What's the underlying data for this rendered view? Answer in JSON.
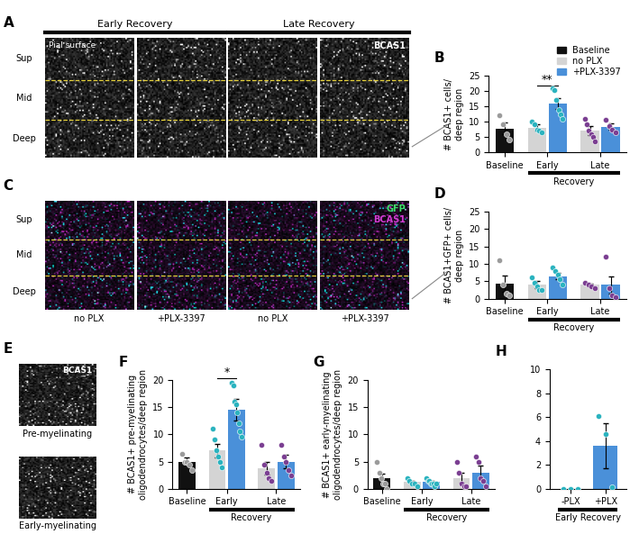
{
  "chart_data": [
    {
      "panel": "B",
      "type": "bar",
      "categories": [
        "Baseline",
        "Early",
        "Late"
      ],
      "bracket": {
        "label": "Recovery",
        "categories": [
          "Early",
          "Late"
        ]
      },
      "ylabel": "# BCAS1+ cells/\ndeep region",
      "ylim": [
        0,
        25
      ],
      "yticks": [
        0,
        5,
        10,
        15,
        20,
        25
      ],
      "legend": "upper right",
      "annotations": [
        {
          "text": "**",
          "category": "Early"
        }
      ],
      "series": [
        {
          "name": "Baseline",
          "color": "#111111",
          "values": [
            7.8,
            null,
            null
          ],
          "errors": [
            2.0,
            null,
            null
          ],
          "points": [
            [
              12,
              9,
              6,
              4
            ],
            [],
            []
          ]
        },
        {
          "name": "no PLX",
          "color": "#d4d4d4",
          "values": [
            null,
            8.0,
            7.0
          ],
          "errors": [
            null,
            1.0,
            1.5
          ],
          "points": [
            [],
            [
              10,
              9,
              7.5,
              7,
              6.5
            ],
            [
              11,
              9,
              7,
              6,
              5,
              3.5
            ]
          ]
        },
        {
          "name": "+PLX-3397",
          "color": "#4a90d9",
          "values": [
            null,
            16.0,
            8.3
          ],
          "errors": [
            null,
            1.8,
            1.0
          ],
          "points": [
            [],
            [
              21,
              20.5,
              17,
              14,
              12.5,
              11
            ],
            [
              10.5,
              8.5,
              7.5,
              6.5
            ]
          ]
        }
      ]
    },
    {
      "panel": "D",
      "type": "bar",
      "categories": [
        "Baseline",
        "Early",
        "Late"
      ],
      "bracket": {
        "label": "Recovery",
        "categories": [
          "Early",
          "Late"
        ]
      },
      "ylabel": "# BCAS1+GFP+ cells/\ndeep region",
      "ylim": [
        0,
        25
      ],
      "yticks": [
        0,
        5,
        10,
        15,
        20,
        25
      ],
      "series": [
        {
          "name": "Baseline",
          "color": "#111111",
          "values": [
            4.3,
            null,
            null
          ],
          "errors": [
            2.3,
            null,
            null
          ],
          "points": [
            [
              11,
              4,
              1.5,
              1
            ],
            [],
            []
          ]
        },
        {
          "name": "no PLX",
          "color": "#d4d4d4",
          "values": [
            null,
            4.0,
            4.0
          ],
          "errors": [
            null,
            1.0,
            0.4
          ],
          "points": [
            [],
            [
              6,
              4.5,
              3.5,
              2.5,
              2.5
            ],
            [
              4.5,
              4,
              3.5,
              3
            ]
          ]
        },
        {
          "name": "+PLX-3397",
          "color": "#4a90d9",
          "values": [
            null,
            6.5,
            4.0
          ],
          "errors": [
            null,
            1.0,
            2.5
          ],
          "points": [
            [],
            [
              9,
              8,
              7,
              5.5,
              4
            ],
            [
              12,
              3,
              1,
              0.5
            ]
          ]
        }
      ]
    },
    {
      "panel": "F",
      "type": "bar",
      "categories": [
        "Baseline",
        "Early",
        "Late"
      ],
      "bracket": {
        "label": "Recovery",
        "categories": [
          "Early",
          "Late"
        ]
      },
      "ylabel": "# BCAS1+ pre-myelinating\noligodendrocytes/deep region",
      "ylim": [
        0,
        20
      ],
      "yticks": [
        0,
        5,
        10,
        15,
        20
      ],
      "annotations": [
        {
          "text": "*",
          "category": "Early"
        }
      ],
      "series": [
        {
          "name": "Baseline",
          "color": "#111111",
          "values": [
            5.0,
            null,
            null
          ],
          "errors": [
            0.7,
            null,
            null
          ],
          "points": [
            [
              6.5,
              5,
              5,
              4.5,
              3.5
            ],
            [],
            []
          ]
        },
        {
          "name": "no PLX",
          "color": "#d4d4d4",
          "values": [
            null,
            7.0,
            3.8
          ],
          "errors": [
            null,
            1.3,
            1.2
          ],
          "points": [
            [],
            [
              11,
              9,
              7,
              6,
              5,
              4
            ],
            [
              8,
              4.5,
              3,
              2,
              1.5
            ]
          ]
        },
        {
          "name": "+PLX-3397",
          "color": "#4a90d9",
          "values": [
            null,
            14.5,
            5.0
          ],
          "errors": [
            null,
            2.0,
            1.3
          ],
          "points": [
            [],
            [
              19.5,
              19,
              16,
              15.5,
              14,
              12,
              10.5,
              9.5
            ],
            [
              8,
              6,
              5,
              3.5,
              2.5
            ]
          ]
        }
      ]
    },
    {
      "panel": "G",
      "type": "bar",
      "categories": [
        "Baseline",
        "Early",
        "Late"
      ],
      "bracket": {
        "label": "Recovery",
        "categories": [
          "Early",
          "Late"
        ]
      },
      "ylabel": "# BCAS1+ early-myelinating\noligodendrocytes/deep region",
      "ylim": [
        0,
        20
      ],
      "yticks": [
        0,
        5,
        10,
        15,
        20
      ],
      "series": [
        {
          "name": "Baseline",
          "color": "#111111",
          "values": [
            2.0,
            null,
            null
          ],
          "errors": [
            0.8,
            null,
            null
          ],
          "points": [
            [
              5,
              3,
              2,
              1,
              1,
              0
            ],
            [],
            []
          ]
        },
        {
          "name": "no PLX",
          "color": "#d4d4d4",
          "values": [
            null,
            1.2,
            2.0
          ],
          "errors": [
            null,
            0.3,
            0.9
          ],
          "points": [
            [],
            [
              2,
              1.5,
              1,
              1,
              0.5
            ],
            [
              5,
              3,
              1,
              0.5,
              0.5
            ]
          ]
        },
        {
          "name": "+PLX-3397",
          "color": "#4a90d9",
          "values": [
            null,
            1.2,
            3.0
          ],
          "errors": [
            null,
            0.2,
            1.2
          ],
          "points": [
            [],
            [
              2,
              1.5,
              1.5,
              1,
              1,
              1,
              0.5,
              1
            ],
            [
              6,
              5,
              2,
              1.5,
              0.5
            ]
          ]
        }
      ]
    },
    {
      "panel": "H",
      "type": "bar",
      "categories": [
        "-PLX",
        "+PLX"
      ],
      "bracket": {
        "label": "Early Recovery",
        "categories": [
          "-PLX",
          "+PLX"
        ]
      },
      "ylim": [
        0,
        10
      ],
      "yticks": [
        0,
        2,
        4,
        6,
        8,
        10
      ],
      "values": [
        0,
        3.6
      ],
      "errors": [
        0,
        1.9
      ],
      "colors": [
        "#d4d4d4",
        "#4a90d9"
      ],
      "points": [
        [
          0,
          0,
          0
        ],
        [
          6.1,
          4.6,
          0.1
        ]
      ]
    }
  ],
  "image_panels": [
    {
      "panel": "A",
      "headers": [
        "Early Recovery",
        "Late Recovery"
      ],
      "corner_text": "Pial surface",
      "stain": "BCAS1",
      "layers": [
        "Sup",
        "Mid",
        "Deep"
      ]
    },
    {
      "panel": "C",
      "layers": [
        "Sup",
        "Mid",
        "Deep"
      ],
      "channels": [
        {
          "name": "GFP",
          "color": "#3ee06a"
        },
        {
          "name": "BCAS1",
          "color": "#d23cd2"
        }
      ],
      "column_labels": [
        "no PLX",
        "+PLX-3397",
        "no PLX",
        "+PLX-3397"
      ]
    },
    {
      "panel": "E",
      "stain": "BCAS1",
      "labels": [
        "Pre-myelinating",
        "Early-myelinating"
      ]
    }
  ]
}
